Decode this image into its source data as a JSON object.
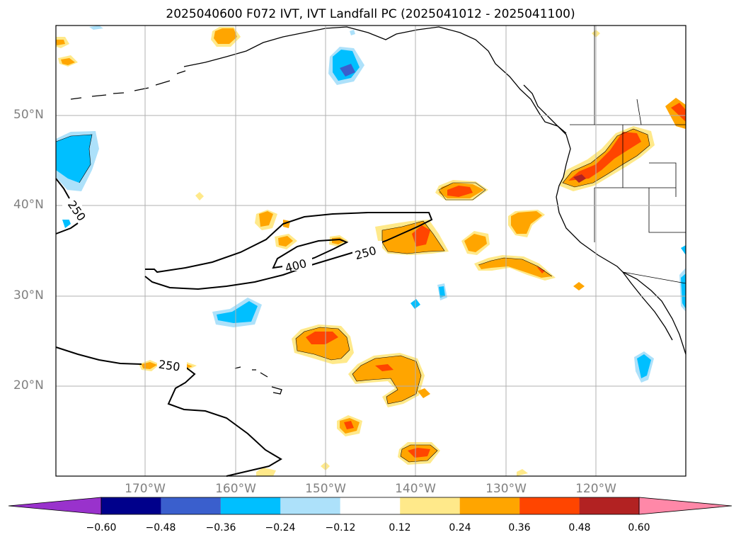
{
  "title": "2025040600 F072 IVT, IVT Landfall PC (2025041012 - 2025041100)",
  "map": {
    "lat_labels": [
      "50°N",
      "40°N",
      "30°N",
      "20°N"
    ],
    "lon_labels": [
      "170°W",
      "160°W",
      "150°W",
      "140°W",
      "130°W",
      "120°W"
    ],
    "contour_labels": [
      "250",
      "400",
      "250",
      "250"
    ],
    "grid": true
  },
  "colorbar": {
    "ticks": [
      "−0.60",
      "−0.48",
      "−0.36",
      "−0.24",
      "−0.12",
      "0.12",
      "0.24",
      "0.36",
      "0.48",
      "0.60"
    ],
    "colors": [
      "#9932CC",
      "#00008B",
      "#3A5FCD",
      "#00BFFF",
      "#ADE1FA",
      "#FFFFFF",
      "#FFE98A",
      "#FFA500",
      "#FF4500",
      "#B22222",
      "#FF88A8"
    ],
    "extend": "both"
  }
}
